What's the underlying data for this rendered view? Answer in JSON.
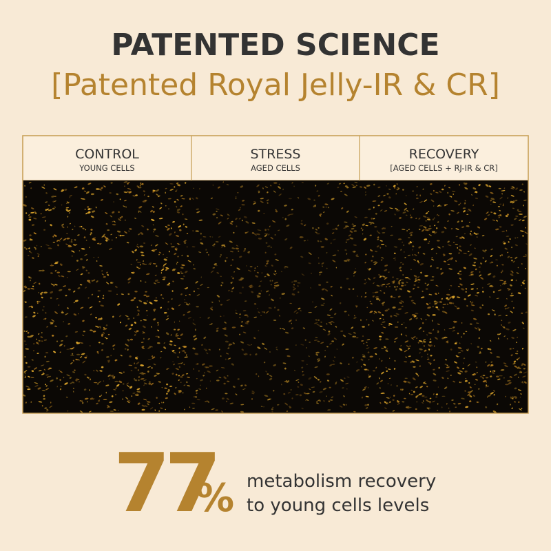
{
  "header": {
    "title": "PATENTED SCIENCE",
    "subtitle": "[Patented Royal Jelly-IR & CR]"
  },
  "panels": [
    {
      "title": "CONTROL",
      "subtitle": "YOUNG CELLS"
    },
    {
      "title": "STRESS",
      "subtitle": "AGED CELLS"
    },
    {
      "title": "RECOVERY",
      "subtitle": "[AGED CELLS + RJ-IR & CR]"
    }
  ],
  "stat": {
    "value": 77,
    "unit": "%",
    "lines": [
      "metabolism recovery",
      "to young cells levels"
    ]
  }
}
